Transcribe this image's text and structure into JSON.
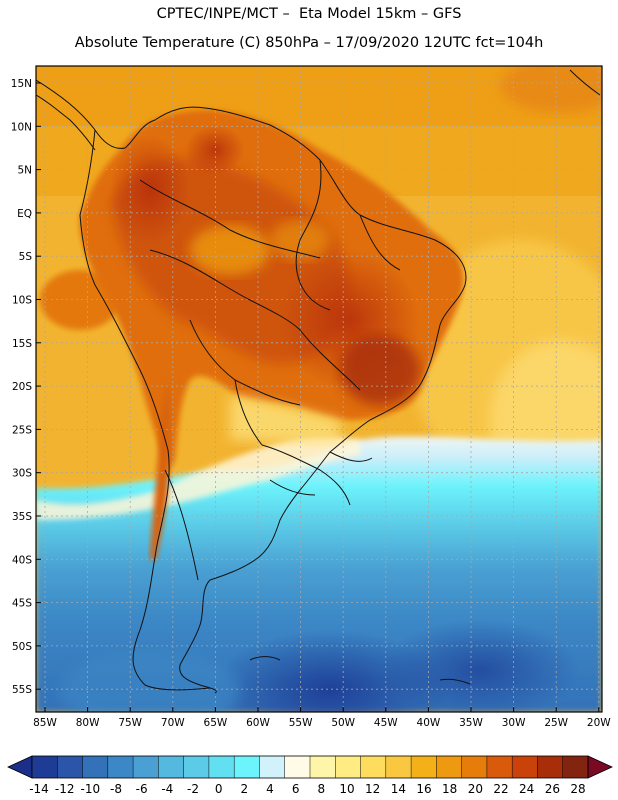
{
  "header": {
    "line1": "CPTEC/INPE/MCT –  Eta Model 15km – GFS",
    "line2": "Absolute Temperature (C) 850hPa – 17/09/2020 12UTC fct=104h"
  },
  "axes": {
    "lat_labels": [
      "15N",
      "10N",
      "5N",
      "EQ",
      "5S",
      "10S",
      "15S",
      "20S",
      "25S",
      "30S",
      "35S",
      "40S",
      "45S",
      "50S",
      "55S"
    ],
    "lon_labels": [
      "85W",
      "80W",
      "75W",
      "70W",
      "65W",
      "60W",
      "55W",
      "50W",
      "45W",
      "40W",
      "35W",
      "30W",
      "25W",
      "20W"
    ]
  },
  "colorbar": {
    "labels": [
      "-14",
      "-12",
      "-10",
      "-8",
      "-6",
      "-4",
      "-2",
      "0",
      "2",
      "4",
      "6",
      "8",
      "10",
      "12",
      "14",
      "16",
      "18",
      "20",
      "22",
      "24",
      "26",
      "28"
    ],
    "colors": [
      "#1e3c96",
      "#2a55a8",
      "#3371b8",
      "#3c88c6",
      "#4aa0d2",
      "#55b8de",
      "#5bcbe8",
      "#62e0f2",
      "#6cf3fb",
      "#d2f2fb",
      "#fffbe6",
      "#fff5a8",
      "#ffec82",
      "#fddc5e",
      "#f9c840",
      "#f4b018",
      "#ed9a10",
      "#e67d0a",
      "#d85a0a",
      "#c8420a",
      "#a82e0a",
      "#822410"
    ],
    "under_color": "#1b2e88",
    "over_color": "#7a0a24"
  }
}
